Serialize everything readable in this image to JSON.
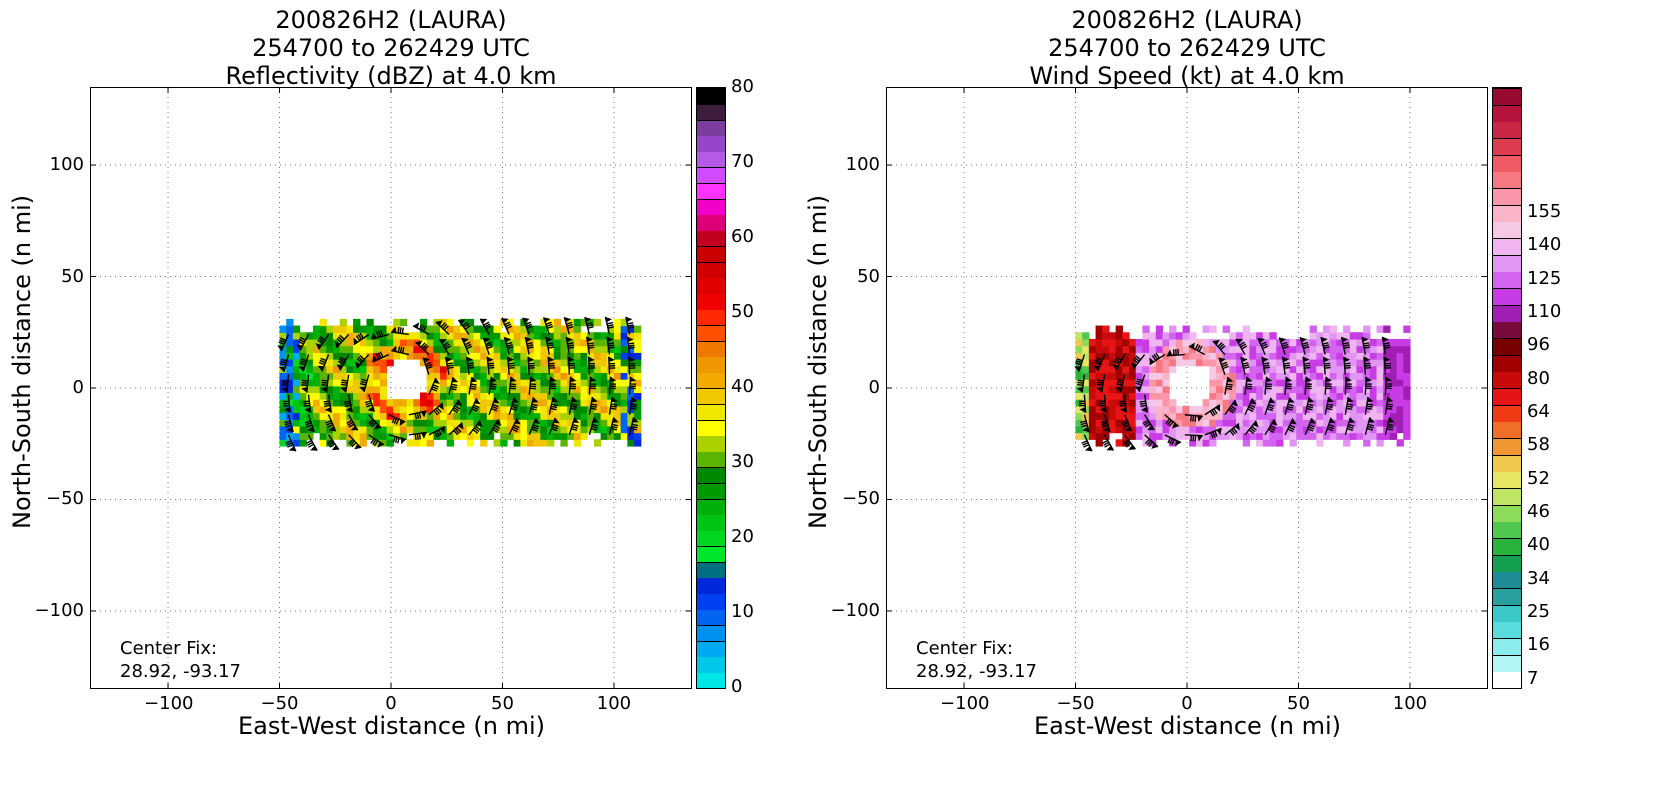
{
  "chart_data": [
    {
      "type": "heatmap",
      "title_lines": [
        "200826H2 (LAURA)",
        "254700 to 262429 UTC",
        "Reflectivity (dBZ) at 4.0 km"
      ],
      "xlabel": "East-West distance (n mi)",
      "ylabel": "North-South distance (n mi)",
      "xlim": [
        -135,
        135
      ],
      "ylim": [
        -135,
        135
      ],
      "x_ticks": [
        -100,
        -50,
        0,
        50,
        100
      ],
      "y_ticks": [
        -100,
        -50,
        0,
        50,
        100
      ],
      "x_tick_labels": [
        "−100",
        "−50",
        "0",
        "50",
        "100"
      ],
      "y_tick_labels": [
        "−100",
        "−50",
        "0",
        "50",
        "100"
      ],
      "grid": true,
      "annotation": [
        "Center Fix:",
        "28.92, -93.17"
      ],
      "colorbar": {
        "range": [
          0,
          80
        ],
        "tick_values": [
          0,
          10,
          20,
          30,
          40,
          50,
          60,
          70,
          80
        ],
        "tick_labels": [
          "0",
          "10",
          "20",
          "30",
          "40",
          "50",
          "60",
          "70",
          "80"
        ],
        "colors": [
          "#00e6e6",
          "#00c8e6",
          "#00aaf0",
          "#0090f0",
          "#0064f0",
          "#0040f0",
          "#0028d8",
          "#007080",
          "#00e62a",
          "#00d61e",
          "#00c414",
          "#00b00a",
          "#009a00",
          "#008800",
          "#5ab400",
          "#aad200",
          "#ffff00",
          "#f0e600",
          "#f0c800",
          "#f0aa00",
          "#f09600",
          "#f07800",
          "#ff5000",
          "#ff2800",
          "#f00000",
          "#e00000",
          "#d00000",
          "#c80000",
          "#c0001e",
          "#dc0078",
          "#f000c8",
          "#ff32ff",
          "#d24aff",
          "#b45ae6",
          "#9646c8",
          "#7d3ca0",
          "#3c1e3c",
          "#000000"
        ]
      },
      "field": {
        "region_x": [
          -50,
          112
        ],
        "region_y": [
          -26,
          31
        ],
        "eye_center": [
          5,
          2
        ],
        "eye_radius": 10,
        "dominant_values": [
          18,
          24,
          34,
          38
        ],
        "weak_edge_values": [
          8,
          12
        ]
      }
    },
    {
      "type": "heatmap",
      "title_lines": [
        "200826H2 (LAURA)",
        "254700 to 262429 UTC",
        "Wind Speed (kt) at 4.0 km"
      ],
      "xlabel": "East-West distance (n mi)",
      "ylabel": "North-South distance (n mi)",
      "xlim": [
        -135,
        135
      ],
      "ylim": [
        -135,
        135
      ],
      "x_ticks": [
        -100,
        -50,
        0,
        50,
        100
      ],
      "y_ticks": [
        -100,
        -50,
        0,
        50,
        100
      ],
      "x_tick_labels": [
        "−100",
        "−50",
        "0",
        "50",
        "100"
      ],
      "y_tick_labels": [
        "−100",
        "−50",
        "0",
        "50",
        "100"
      ],
      "grid": true,
      "annotation": [
        "Center Fix:",
        "28.92, -93.17"
      ],
      "colorbar": {
        "tick_labels": [
          "7",
          "16",
          "25",
          "34",
          "40",
          "46",
          "52",
          "58",
          "64",
          "80",
          "96",
          "110",
          "125",
          "140",
          "155"
        ],
        "tick_indices": [
          0.5,
          2.5,
          4.5,
          6.5,
          8.5,
          10.5,
          12.5,
          14.5,
          16.5,
          18.5,
          20.5,
          22.5,
          24.5,
          26.5,
          28.5
        ],
        "colors": [
          "#ffffff",
          "#b4f5f5",
          "#8cebeb",
          "#5adcdc",
          "#3cc8c8",
          "#28a0a0",
          "#1e8c96",
          "#14a050",
          "#28b43c",
          "#50c850",
          "#8cdc5a",
          "#bee664",
          "#e6e664",
          "#f0c850",
          "#f09632",
          "#f06e28",
          "#f03c14",
          "#e61414",
          "#c80a0a",
          "#a00000",
          "#780000",
          "#780a3c",
          "#a01eb4",
          "#c83ce6",
          "#d264f0",
          "#e196f5",
          "#f0b4f0",
          "#f5c8e6",
          "#fab4c8",
          "#fa96aa",
          "#f57882",
          "#f05a64",
          "#dc3c50",
          "#c82846",
          "#b4143c",
          "#960a32"
        ]
      },
      "field": {
        "region_x": [
          -50,
          100
        ],
        "region_y": [
          -26,
          26
        ],
        "eye_center": [
          0,
          0
        ],
        "eye_radius": 10,
        "dominant_values": [
          70,
          80,
          96,
          110
        ],
        "strong_edge_values": [
          58,
          64
        ]
      }
    }
  ]
}
